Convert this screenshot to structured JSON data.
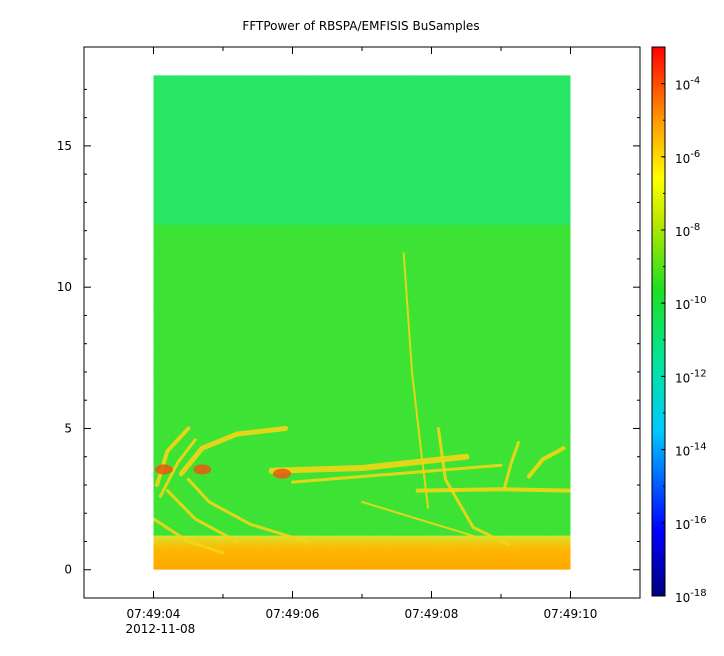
{
  "chart_data": {
    "type": "heatmap",
    "title": "FFTPower of RBSPA/EMFISIS  BuSamples",
    "xlabel": "",
    "ylabel": "",
    "x_ticks": [
      {
        "t": 4,
        "label": "07:49:04",
        "sublabel": "2012-11-08"
      },
      {
        "t": 6,
        "label": "07:49:06",
        "sublabel": ""
      },
      {
        "t": 8,
        "label": "07:49:08",
        "sublabel": ""
      },
      {
        "t": 10,
        "label": "07:49:10",
        "sublabel": ""
      }
    ],
    "x_minor_ticks": [
      3,
      5,
      7,
      9,
      11
    ],
    "xlim": [
      3,
      11
    ],
    "y_ticks": [
      0,
      5,
      10,
      15
    ],
    "ylim": [
      -1,
      18.5
    ],
    "data_extent": {
      "x": [
        4,
        10
      ],
      "y": [
        0,
        17.5
      ]
    },
    "colorbar": {
      "scale": "log",
      "range": [
        1e-18,
        0.001
      ],
      "ticks": [
        {
          "exp": -4,
          "label": "10",
          "sup": "-4"
        },
        {
          "exp": -6,
          "label": "10",
          "sup": "-6"
        },
        {
          "exp": -8,
          "label": "10",
          "sup": "-8"
        },
        {
          "exp": -10,
          "label": "10",
          "sup": "-10"
        },
        {
          "exp": -12,
          "label": "10",
          "sup": "-12"
        },
        {
          "exp": -14,
          "label": "10",
          "sup": "-14"
        },
        {
          "exp": -16,
          "label": "10",
          "sup": "-16"
        },
        {
          "exp": -18,
          "label": "10",
          "sup": "-18"
        }
      ]
    },
    "colors": {
      "low_band": "#ffa800",
      "mid_band": "#2be03a",
      "high_band": "#14e46e",
      "emission": "#f2d21a",
      "strong": "#e84a10"
    }
  }
}
